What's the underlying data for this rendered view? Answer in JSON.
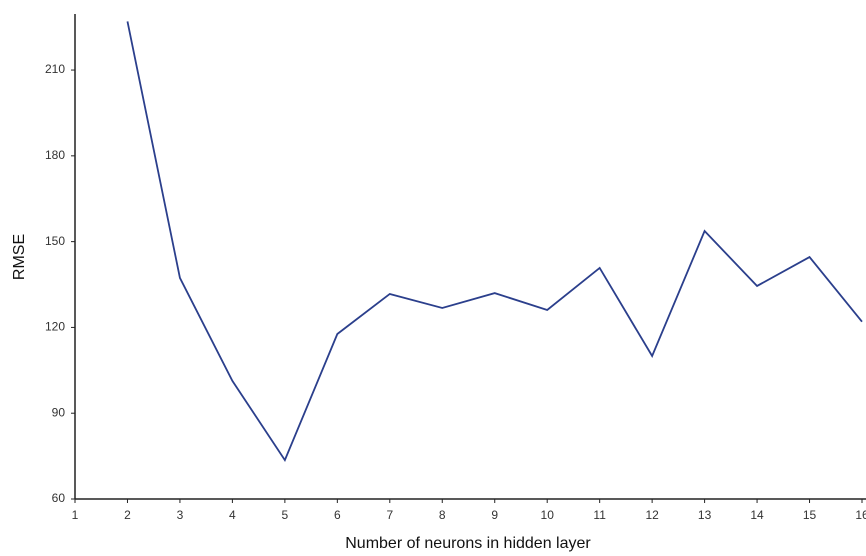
{
  "chart_data": {
    "type": "line",
    "x_label": "Number of neurons in hidden layer",
    "y_label": "RMSE",
    "x": [
      2,
      3,
      4,
      5,
      6,
      7,
      8,
      9,
      10,
      11,
      12,
      13,
      14,
      15,
      16
    ],
    "series": [
      {
        "color": "#2b3f8c",
        "values": [
          227,
          137.3,
          101.3,
          73.6,
          117.7,
          131.7,
          126.8,
          132,
          126.1,
          140.8,
          110,
          153.7,
          134.5,
          144.6,
          122
        ]
      }
    ],
    "xlim": [
      1,
      16
    ],
    "xticks": [
      1,
      2,
      3,
      4,
      5,
      6,
      7,
      8,
      9,
      10,
      11,
      12,
      13,
      14,
      15,
      16
    ],
    "ylim": [
      60,
      229.6
    ],
    "yticks": [
      60,
      90,
      120,
      150,
      180,
      210
    ],
    "grid": false
  }
}
